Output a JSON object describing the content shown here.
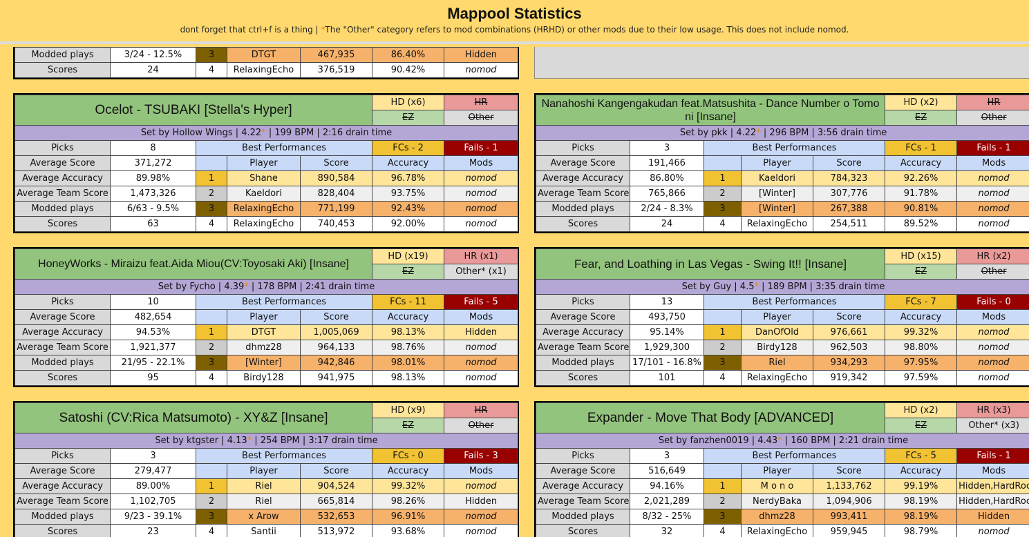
{
  "header": {
    "title": "Mappool Statistics",
    "subtitle_pre": "dont forget that ctrl+f is a thing | ",
    "subtitle_star": "*",
    "subtitle_post": "The \"Other\" category refers to mod combinations (HRHD) or other mods due to their low usage. This does not include nomod."
  },
  "partial": {
    "rows": [
      {
        "label": "Modded plays",
        "value": "3/24 - 12.5%",
        "rank": "3",
        "player": "DTGT",
        "score": "467,935",
        "acc": "86.40%",
        "mods": "Hidden"
      },
      {
        "label": "Scores",
        "value": "24",
        "rank": "4",
        "player": "RelaxingEcho",
        "score": "376,519",
        "acc": "90.42%",
        "mods": "nomod"
      }
    ]
  },
  "labels": {
    "picks": "Picks",
    "avg_score": "Average Score",
    "avg_acc": "Average Accuracy",
    "avg_team": "Average Team Score",
    "modded": "Modded plays",
    "scores": "Scores",
    "best": "Best Performances",
    "player": "Player",
    "score": "Score",
    "accuracy": "Accuracy",
    "mods": "Mods",
    "ez": "EZ",
    "other": "Other"
  },
  "maps": [
    {
      "title": "Ocelot - TSUBAKI [Stella's Hyper]",
      "hd": "HD (x6)",
      "hr": "HR",
      "other": "Other",
      "set_by": "Set by Hollow Wings | 4.22",
      "star": "*",
      "set_rest": " | 199 BPM | 2:16 drain time",
      "picks": "8",
      "fcs": "FCs - 2",
      "fails": "Fails - 1",
      "avg_score": "371,272",
      "avg_acc": "89.98%",
      "avg_team": "1,473,326",
      "modded": "6/63 - 9.5%",
      "scores": "63",
      "perf": [
        {
          "rank": "1",
          "player": "Shane",
          "score": "890,584",
          "acc": "96.78%",
          "mods": "nomod"
        },
        {
          "rank": "2",
          "player": "Kaeldori",
          "score": "828,404",
          "acc": "93.75%",
          "mods": "nomod"
        },
        {
          "rank": "3",
          "player": "RelaxingEcho",
          "score": "771,199",
          "acc": "92.43%",
          "mods": "nomod"
        },
        {
          "rank": "4",
          "player": "RelaxingEcho",
          "score": "740,453",
          "acc": "92.00%",
          "mods": "nomod"
        }
      ]
    },
    {
      "title": "Nanahoshi Kangengakudan feat.Matsushita - Dance Number o Tomo ni [Insane]",
      "hd": "HD (x2)",
      "hr": "HR",
      "other": "Other",
      "set_by": "Set by pkk | 4.22",
      "star": "*",
      "set_rest": " | 296 BPM | 3:56 drain time",
      "picks": "3",
      "fcs": "FCs - 1",
      "fails": "Fails - 1",
      "avg_score": "191,466",
      "avg_acc": "86.80%",
      "avg_team": "765,866",
      "modded": "2/24 - 8.3%",
      "scores": "24",
      "perf": [
        {
          "rank": "1",
          "player": "Kaeldori",
          "score": "784,323",
          "acc": "92.26%",
          "mods": "nomod"
        },
        {
          "rank": "2",
          "player": "[Winter]",
          "score": "307,776",
          "acc": "91.78%",
          "mods": "nomod"
        },
        {
          "rank": "3",
          "player": "[Winter]",
          "score": "267,388",
          "acc": "90.81%",
          "mods": "nomod"
        },
        {
          "rank": "4",
          "player": "RelaxingEcho",
          "score": "254,511",
          "acc": "89.52%",
          "mods": "nomod"
        }
      ]
    },
    {
      "title": "HoneyWorks - Miraizu feat.Aida Miou(CV:Toyosaki Aki) [Insane]",
      "hd": "HD (x19)",
      "hr": "HR (x1)",
      "other": "Other* (x1)",
      "set_by": "Set by Fycho | 4.39",
      "star": "*",
      "set_rest": " | 178 BPM | 2:41 drain time",
      "picks": "10",
      "fcs": "FCs - 11",
      "fails": "Fails - 5",
      "avg_score": "482,654",
      "avg_acc": "94.53%",
      "avg_team": "1,921,377",
      "modded": "21/95 - 22.1%",
      "scores": "95",
      "perf": [
        {
          "rank": "1",
          "player": "DTGT",
          "score": "1,005,069",
          "acc": "98.13%",
          "mods": "Hidden"
        },
        {
          "rank": "2",
          "player": "dhmz28",
          "score": "964,133",
          "acc": "98.76%",
          "mods": "nomod"
        },
        {
          "rank": "3",
          "player": "[Winter]",
          "score": "942,846",
          "acc": "98.01%",
          "mods": "nomod"
        },
        {
          "rank": "4",
          "player": "Birdy128",
          "score": "941,975",
          "acc": "98.13%",
          "mods": "nomod"
        }
      ]
    },
    {
      "title": "Fear, and Loathing in Las Vegas - Swing It!! [Insane]",
      "hd": "HD (x15)",
      "hr": "HR (x2)",
      "other": "Other",
      "set_by": "Set by Guy | 4.5",
      "star": "*",
      "set_rest": " | 189 BPM | 3:35 drain time",
      "picks": "13",
      "fcs": "FCs - 7",
      "fails": "Fails - 0",
      "avg_score": "493,750",
      "avg_acc": "95.14%",
      "avg_team": "1,929,300",
      "modded": "17/101 - 16.8%",
      "scores": "101",
      "perf": [
        {
          "rank": "1",
          "player": "DanOfOld",
          "score": "976,661",
          "acc": "99.32%",
          "mods": "nomod"
        },
        {
          "rank": "2",
          "player": "Birdy128",
          "score": "962,503",
          "acc": "98.80%",
          "mods": "nomod"
        },
        {
          "rank": "3",
          "player": "Riel",
          "score": "934,293",
          "acc": "97.95%",
          "mods": "nomod"
        },
        {
          "rank": "4",
          "player": "RelaxingEcho",
          "score": "919,342",
          "acc": "97.59%",
          "mods": "nomod"
        }
      ]
    },
    {
      "title": "Satoshi (CV:Rica Matsumoto) - XY&Z [Insane]",
      "hd": "HD (x9)",
      "hr": "HR",
      "other": "Other",
      "set_by": "Set by ktgster | 4.13",
      "star": "*",
      "set_rest": " | 254 BPM | 3:17 drain time",
      "picks": "3",
      "fcs": "FCs - 0",
      "fails": "Fails - 3",
      "avg_score": "279,477",
      "avg_acc": "89.00%",
      "avg_team": "1,102,705",
      "modded": "9/23 - 39.1%",
      "scores": "23",
      "perf": [
        {
          "rank": "1",
          "player": "Riel",
          "score": "904,524",
          "acc": "99.32%",
          "mods": "nomod"
        },
        {
          "rank": "2",
          "player": "Riel",
          "score": "665,814",
          "acc": "98.26%",
          "mods": "Hidden"
        },
        {
          "rank": "3",
          "player": "x Arow",
          "score": "532,653",
          "acc": "96.91%",
          "mods": "nomod"
        },
        {
          "rank": "4",
          "player": "Santii",
          "score": "513,972",
          "acc": "93.68%",
          "mods": "nomod"
        }
      ]
    },
    {
      "title": "Expander - Move That Body [ADVANCED]",
      "hd": "HD (x2)",
      "hr": "HR (x3)",
      "other": "Other* (x3)",
      "set_by": "Set by fanzhen0019 | 4.43",
      "star": "*",
      "set_rest": " | 160 BPM | 2:21 drain time",
      "picks": "3",
      "fcs": "FCs - 5",
      "fails": "Fails - 1",
      "avg_score": "516,649",
      "avg_acc": "94.16%",
      "avg_team": "2,021,289",
      "modded": "8/32 - 25%",
      "scores": "32",
      "perf": [
        {
          "rank": "1",
          "player": "M o n o",
          "score": "1,133,762",
          "acc": "99.19%",
          "mods": "Hidden,HardRock"
        },
        {
          "rank": "2",
          "player": "NerdyBaka",
          "score": "1,094,906",
          "acc": "98.19%",
          "mods": "Hidden,HardRock"
        },
        {
          "rank": "3",
          "player": "dhmz28",
          "score": "993,411",
          "acc": "98.19%",
          "mods": "Hidden"
        },
        {
          "rank": "4",
          "player": "RelaxingEcho",
          "score": "959,945",
          "acc": "98.79%",
          "mods": "nomod"
        }
      ]
    }
  ],
  "colors": {
    "background": "#ffd96e",
    "title_green": "#93c47d",
    "info_purple": "#b4a7d6",
    "header_blue": "#c9daf8",
    "fcs_gold": "#f1c232",
    "fails_red": "#990000"
  }
}
